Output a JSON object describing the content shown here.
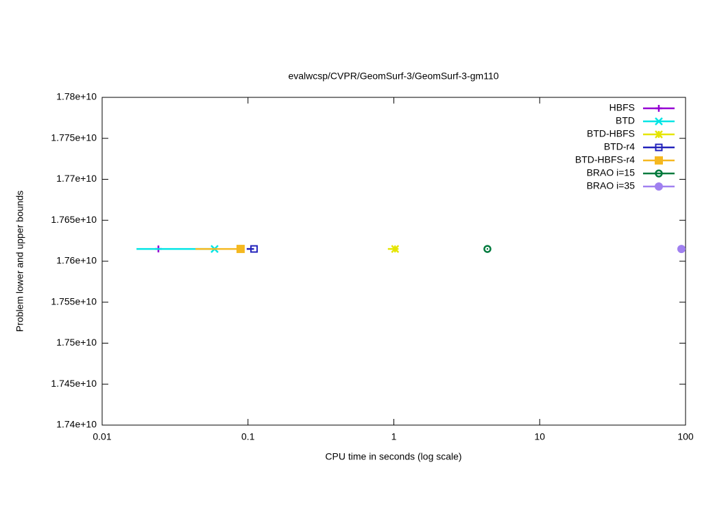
{
  "chart_data": {
    "type": "line",
    "title": "evalwcsp/CVPR/GeomSurf-3/GeomSurf-3-gm110",
    "x_label": "CPU time in seconds (log scale)",
    "y_label": "Problem lower and upper bounds",
    "x_log": true,
    "xlim": [
      0.01,
      100
    ],
    "xticks": [
      0.01,
      0.1,
      1,
      10,
      100
    ],
    "ylim": [
      17400000000,
      17800000000
    ],
    "yticks": [
      {
        "value": 17400000000,
        "label": "1.74e+10"
      },
      {
        "value": 17450000000,
        "label": "1.745e+10"
      },
      {
        "value": 17500000000,
        "label": "1.75e+10"
      },
      {
        "value": 17550000000,
        "label": "1.755e+10"
      },
      {
        "value": 17600000000,
        "label": "1.76e+10"
      },
      {
        "value": 17650000000,
        "label": "1.765e+10"
      },
      {
        "value": 17700000000,
        "label": "1.77e+10"
      },
      {
        "value": 17750000000,
        "label": "1.775e+10"
      },
      {
        "value": 17800000000,
        "label": "1.78e+10"
      }
    ],
    "legend": "top-right",
    "series": [
      {
        "name": "HBFS",
        "color": "#9400d3",
        "marker": "plus",
        "x": [
          0.0243
        ],
        "values": [
          17615000000
        ]
      },
      {
        "name": "BTD",
        "color": "#00e5e5",
        "marker": "cross",
        "x": [
          0.0172,
          0.059
        ],
        "values": [
          17615000000,
          17615000000
        ]
      },
      {
        "name": "BTD-HBFS",
        "color": "#e5e500",
        "marker": "star",
        "x": [
          0.91,
          1.02
        ],
        "values": [
          17615000000,
          17615000000
        ]
      },
      {
        "name": "BTD-r4",
        "color": "#2222bb",
        "marker": "open-square",
        "x": [
          0.098,
          0.11
        ],
        "values": [
          17615000000,
          17615000000
        ]
      },
      {
        "name": "BTD-HBFS-r4",
        "color": "#f5b820",
        "marker": "filled-square",
        "x": [
          0.0436,
          0.089
        ],
        "values": [
          17615000000,
          17615000000
        ]
      },
      {
        "name": "BRAO i=15",
        "color": "#007a3d",
        "marker": "dot-circle",
        "x": [
          4.38
        ],
        "values": [
          17615000000
        ]
      },
      {
        "name": "BRAO i=35",
        "color": "#a080f0",
        "marker": "filled-circle",
        "x": [
          93.7
        ],
        "values": [
          17615000000
        ]
      }
    ]
  }
}
